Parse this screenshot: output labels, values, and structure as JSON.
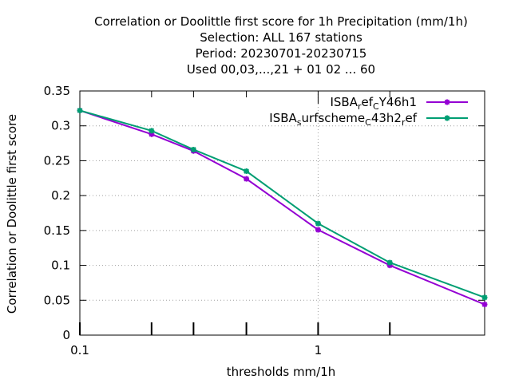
{
  "title_lines": [
    "Correlation or Doolittle first score  for 1h Precipitation (mm/1h)",
    "Selection: ALL    167 stations",
    "Period: 20230701-20230715",
    "Used  00,03,...,21  + 01 02 ... 60"
  ],
  "chart_data": {
    "type": "line",
    "title": "Correlation or Doolittle first score  for 1h Precipitation (mm/1h)",
    "xlabel": "thresholds mm/1h",
    "ylabel": "Correlation or Doolittle first score",
    "x_scale": "log",
    "xlim": [
      0.1,
      5
    ],
    "ylim": [
      0,
      0.35
    ],
    "grid": true,
    "legend_position": "top-right",
    "x_tick_labels": [
      "0.1",
      "1"
    ],
    "x_ticks": [
      0.1,
      1
    ],
    "x_minor_ticks": [
      0.2,
      0.3,
      0.5,
      2
    ],
    "y_ticks": [
      0,
      0.05,
      0.1,
      0.15,
      0.2,
      0.25,
      0.3,
      0.35
    ],
    "y_tick_labels": [
      "0",
      "0.05",
      "0.1",
      "0.15",
      "0.2",
      "0.25",
      "0.3",
      "0.35"
    ],
    "x": [
      0.1,
      0.2,
      0.3,
      0.5,
      1,
      2,
      5
    ],
    "series": [
      {
        "name": "ISBA_ref_CY46h1",
        "legend_parts": [
          [
            "ISBA",
            "n"
          ],
          [
            "r",
            "s"
          ],
          [
            "ef",
            "n"
          ],
          [
            "C",
            "s"
          ],
          [
            "Y46h1",
            "n"
          ]
        ],
        "color": "#9400d3",
        "values": [
          0.322,
          0.288,
          0.264,
          0.224,
          0.151,
          0.1,
          0.044
        ]
      },
      {
        "name": "ISBA_surfscheme_C43h2_ref",
        "legend_parts": [
          [
            "ISBA",
            "n"
          ],
          [
            "s",
            "s"
          ],
          [
            "urfscheme",
            "n"
          ],
          [
            "C",
            "s"
          ],
          [
            "43h2",
            "n"
          ],
          [
            "r",
            "s"
          ],
          [
            "ef",
            "n"
          ]
        ],
        "color": "#009e73",
        "values": [
          0.322,
          0.293,
          0.266,
          0.235,
          0.16,
          0.104,
          0.054
        ]
      }
    ]
  }
}
